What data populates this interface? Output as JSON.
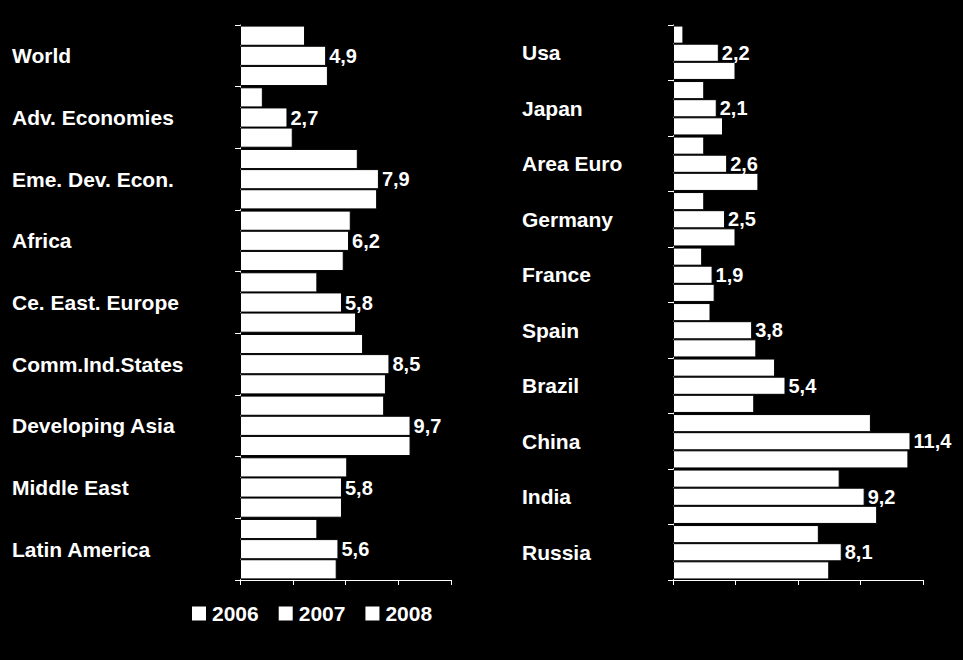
{
  "chart_data": [
    {
      "type": "bar",
      "orientation": "horizontal",
      "legend": "bottom",
      "tick_labels": "y",
      "categories": [
        "World",
        "Adv. Economies",
        "Eme. Dev. Econ.",
        "Africa",
        "Ce. East. Europe",
        "Comm.Ind.States",
        "Developing Asia",
        "Middle East",
        "Latin America"
      ],
      "xlim": [
        0,
        12
      ],
      "xticks": [
        0,
        3,
        6,
        9,
        12
      ],
      "series": [
        {
          "name": "2006",
          "color": "#ffffff",
          "values": [
            3.7,
            1.3,
            6.7,
            6.3,
            4.4,
            7.0,
            8.2,
            6.1,
            4.4
          ]
        },
        {
          "name": "2007",
          "color": "#ffffff",
          "values": [
            4.9,
            2.7,
            7.9,
            6.2,
            5.8,
            8.5,
            9.7,
            5.8,
            5.6
          ],
          "data_labels": true,
          "value_labels": [
            "4,9",
            "2,7",
            "7,9",
            "6,2",
            "5,8",
            "8,5",
            "9,7",
            "5,8",
            "5,6"
          ]
        },
        {
          "name": "2008",
          "color": "#ffffff",
          "values": [
            5.0,
            3.0,
            7.8,
            5.9,
            6.6,
            8.3,
            9.7,
            5.8,
            5.5
          ]
        }
      ]
    },
    {
      "type": "bar",
      "orientation": "horizontal",
      "tick_labels": "y",
      "categories": [
        "Usa",
        "Japan",
        "Area Euro",
        "Germany",
        "France",
        "Spain",
        "Brazil",
        "China",
        "India",
        "Russia"
      ],
      "xlim": [
        0,
        12
      ],
      "xticks": [
        0,
        3,
        6,
        9,
        12
      ],
      "series": [
        {
          "name": "2006",
          "color": "#ffffff",
          "values": [
            0.5,
            1.5,
            1.5,
            1.5,
            1.4,
            1.8,
            4.9,
            9.5,
            8.0,
            7.0
          ]
        },
        {
          "name": "2007",
          "color": "#ffffff",
          "values": [
            2.2,
            2.1,
            2.6,
            2.5,
            1.9,
            3.8,
            5.4,
            11.4,
            9.2,
            8.1
          ],
          "data_labels": true,
          "value_labels": [
            "2,2",
            "2,1",
            "2,6",
            "2,5",
            "1,9",
            "3,8",
            "5,4",
            "11,4",
            "9,2",
            "8,1"
          ]
        },
        {
          "name": "2008",
          "color": "#ffffff",
          "values": [
            3.0,
            2.4,
            4.1,
            3.0,
            2.0,
            4.0,
            3.9,
            11.3,
            9.8,
            7.5
          ]
        }
      ]
    }
  ]
}
